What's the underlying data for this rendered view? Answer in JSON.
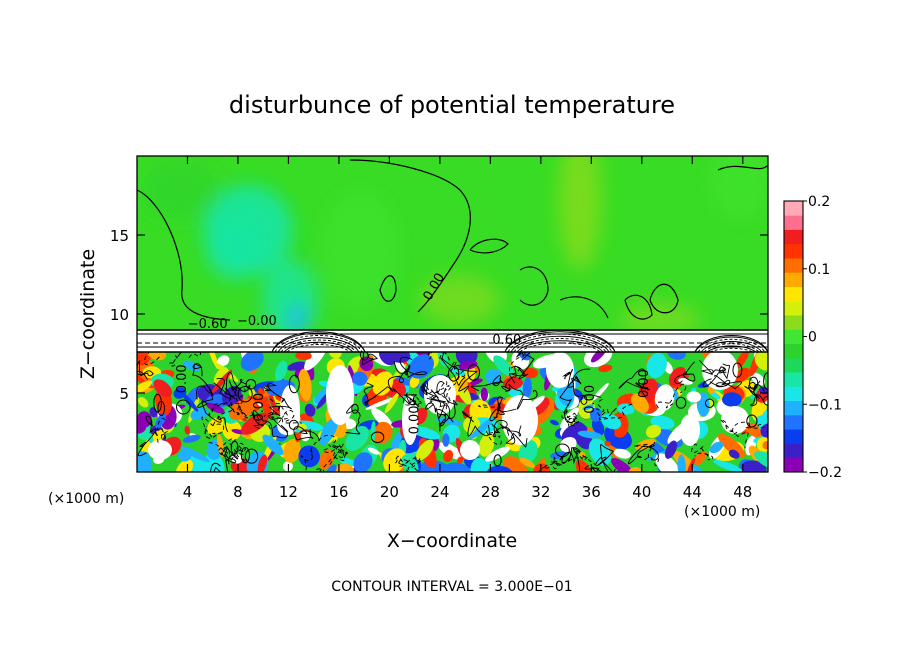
{
  "chart_data": {
    "type": "heatmap",
    "title": "disturbunce of potential temperature",
    "xlabel": "X−coordinate",
    "ylabel": "Z−coordinate",
    "x_unit_left": "(×1000 m)",
    "x_unit_right": "(×1000 m)",
    "footer": "CONTOUR INTERVAL = 3.000E−01",
    "xlim": [
      0,
      50
    ],
    "ylim": [
      0,
      20
    ],
    "x_ticks": [
      4,
      8,
      12,
      16,
      20,
      24,
      28,
      32,
      36,
      40,
      44,
      48
    ],
    "x_tick_labels": [
      "4",
      "8",
      "12",
      "16",
      "20",
      "24",
      "28",
      "32",
      "36",
      "40",
      "44",
      "48"
    ],
    "y_ticks": [
      5,
      10,
      15
    ],
    "y_tick_labels": [
      "5",
      "10",
      "15"
    ],
    "grid": false,
    "colorbar": {
      "range": [
        -0.2,
        0.2
      ],
      "tick_values": [
        0.2,
        0.1,
        0,
        -0.1,
        -0.2
      ],
      "tick_labels": [
        "0.2",
        "0.1",
        "0",
        "−0.1",
        "−0.2"
      ],
      "colors": [
        "#8b00b5",
        "#3c1fc9",
        "#0a3cf0",
        "#1e73ff",
        "#1fb0ff",
        "#19e6e6",
        "#19e6a5",
        "#1ed85a",
        "#2dd22d",
        "#41e632",
        "#8cdc1e",
        "#d2f00a",
        "#ffe600",
        "#ffaa00",
        "#ff6e00",
        "#ff3200",
        "#f01e1e",
        "#ff6e8c",
        "#ffaab4"
      ],
      "placement": "right"
    },
    "contour_labels": [
      {
        "text": "0.00",
        "x": 23.8,
        "y": 11.6
      },
      {
        "text": "−0.60",
        "x": 5.6,
        "y": 9.1
      },
      {
        "text": "−0.00",
        "x": 9.5,
        "y": 9.3
      },
      {
        "text": "0.60",
        "x": 29.3,
        "y": 8.1
      },
      {
        "text": "0.00",
        "x": 3.9,
        "y": 5.9
      },
      {
        "text": "0.00",
        "x": 10.0,
        "y": 4.1
      },
      {
        "text": "0.00",
        "x": 22.3,
        "y": 3.3
      },
      {
        "text": "0.00",
        "x": 36.2,
        "y": 4.6
      },
      {
        "text": "0.00",
        "x": 40.5,
        "y": 5.6
      }
    ]
  }
}
